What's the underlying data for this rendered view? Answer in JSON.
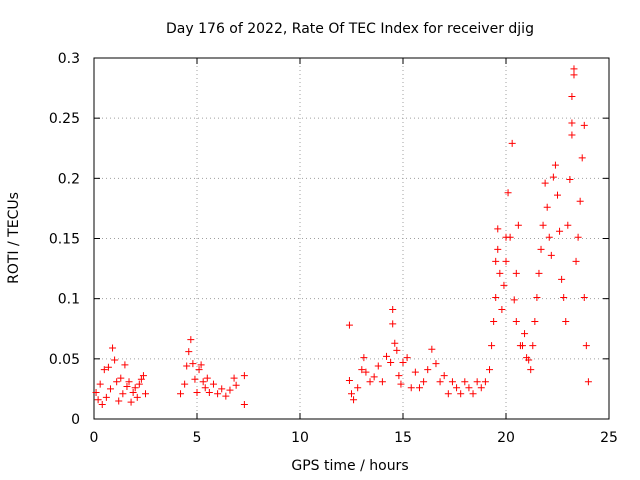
{
  "chart_data": {
    "type": "scatter",
    "title": "Day 176 of 2022, Rate Of TEC Index for receiver djig",
    "xlabel": "GPS time / hours",
    "ylabel": "ROTI / TECUs",
    "xlim": [
      0,
      25
    ],
    "ylim": [
      0,
      0.3
    ],
    "xticks": [
      0,
      5,
      10,
      15,
      20,
      25
    ],
    "yticks": [
      0,
      0.05,
      0.1,
      0.15,
      0.2,
      0.25,
      0.3
    ],
    "xtick_labels": [
      "0",
      "5",
      "10",
      "15",
      "20",
      "25"
    ],
    "ytick_labels": [
      "0",
      "0.05",
      "0.1",
      "0.15",
      "0.2",
      "0.25",
      "0.3"
    ],
    "grid": true,
    "marker": "+",
    "color": "#ff0000",
    "series": [
      {
        "name": "ROTI",
        "points": [
          [
            0.1,
            0.022
          ],
          [
            0.2,
            0.016
          ],
          [
            0.3,
            0.029
          ],
          [
            0.4,
            0.012
          ],
          [
            0.5,
            0.041
          ],
          [
            0.6,
            0.018
          ],
          [
            0.7,
            0.043
          ],
          [
            0.8,
            0.025
          ],
          [
            0.9,
            0.059
          ],
          [
            1.0,
            0.049
          ],
          [
            1.1,
            0.031
          ],
          [
            1.2,
            0.015
          ],
          [
            1.3,
            0.034
          ],
          [
            1.4,
            0.021
          ],
          [
            1.5,
            0.045
          ],
          [
            1.6,
            0.027
          ],
          [
            1.7,
            0.031
          ],
          [
            1.8,
            0.014
          ],
          [
            1.9,
            0.022
          ],
          [
            2.0,
            0.026
          ],
          [
            2.1,
            0.018
          ],
          [
            2.2,
            0.029
          ],
          [
            2.3,
            0.033
          ],
          [
            2.4,
            0.036
          ],
          [
            2.5,
            0.021
          ],
          [
            4.2,
            0.021
          ],
          [
            4.4,
            0.029
          ],
          [
            4.5,
            0.044
          ],
          [
            4.6,
            0.056
          ],
          [
            4.7,
            0.066
          ],
          [
            4.8,
            0.046
          ],
          [
            4.9,
            0.033
          ],
          [
            5.0,
            0.022
          ],
          [
            5.1,
            0.041
          ],
          [
            5.2,
            0.045
          ],
          [
            5.3,
            0.031
          ],
          [
            5.4,
            0.026
          ],
          [
            5.5,
            0.034
          ],
          [
            5.6,
            0.022
          ],
          [
            5.8,
            0.029
          ],
          [
            6.0,
            0.021
          ],
          [
            6.2,
            0.025
          ],
          [
            6.4,
            0.019
          ],
          [
            6.6,
            0.024
          ],
          [
            6.8,
            0.034
          ],
          [
            6.9,
            0.028
          ],
          [
            7.3,
            0.036
          ],
          [
            7.3,
            0.012
          ],
          [
            12.4,
            0.078
          ],
          [
            12.4,
            0.032
          ],
          [
            12.5,
            0.021
          ],
          [
            12.6,
            0.016
          ],
          [
            12.8,
            0.026
          ],
          [
            13.0,
            0.041
          ],
          [
            13.1,
            0.051
          ],
          [
            13.2,
            0.039
          ],
          [
            13.4,
            0.031
          ],
          [
            13.6,
            0.035
          ],
          [
            13.8,
            0.044
          ],
          [
            14.0,
            0.031
          ],
          [
            14.2,
            0.052
          ],
          [
            14.4,
            0.047
          ],
          [
            14.5,
            0.079
          ],
          [
            14.5,
            0.091
          ],
          [
            14.6,
            0.063
          ],
          [
            14.7,
            0.057
          ],
          [
            14.8,
            0.036
          ],
          [
            14.9,
            0.029
          ],
          [
            15.0,
            0.047
          ],
          [
            15.2,
            0.051
          ],
          [
            15.4,
            0.026
          ],
          [
            15.6,
            0.039
          ],
          [
            15.8,
            0.026
          ],
          [
            16.0,
            0.031
          ],
          [
            16.2,
            0.041
          ],
          [
            16.4,
            0.058
          ],
          [
            16.6,
            0.046
          ],
          [
            16.8,
            0.031
          ],
          [
            17.0,
            0.036
          ],
          [
            17.2,
            0.021
          ],
          [
            17.4,
            0.031
          ],
          [
            17.6,
            0.026
          ],
          [
            17.8,
            0.021
          ],
          [
            18.0,
            0.031
          ],
          [
            18.2,
            0.026
          ],
          [
            18.4,
            0.021
          ],
          [
            18.6,
            0.031
          ],
          [
            18.8,
            0.026
          ],
          [
            19.0,
            0.031
          ],
          [
            19.2,
            0.041
          ],
          [
            19.3,
            0.061
          ],
          [
            19.4,
            0.081
          ],
          [
            19.5,
            0.101
          ],
          [
            19.5,
            0.131
          ],
          [
            19.6,
            0.141
          ],
          [
            19.6,
            0.158
          ],
          [
            19.7,
            0.121
          ],
          [
            19.8,
            0.091
          ],
          [
            19.9,
            0.111
          ],
          [
            20.0,
            0.151
          ],
          [
            20.0,
            0.131
          ],
          [
            20.1,
            0.188
          ],
          [
            20.2,
            0.151
          ],
          [
            20.3,
            0.229
          ],
          [
            20.4,
            0.099
          ],
          [
            20.5,
            0.121
          ],
          [
            20.5,
            0.081
          ],
          [
            20.6,
            0.161
          ],
          [
            20.7,
            0.061
          ],
          [
            20.8,
            0.061
          ],
          [
            20.9,
            0.071
          ],
          [
            21.0,
            0.051
          ],
          [
            21.1,
            0.049
          ],
          [
            21.2,
            0.041
          ],
          [
            21.3,
            0.061
          ],
          [
            21.4,
            0.081
          ],
          [
            21.5,
            0.101
          ],
          [
            21.6,
            0.121
          ],
          [
            21.7,
            0.141
          ],
          [
            21.8,
            0.161
          ],
          [
            21.9,
            0.196
          ],
          [
            22.0,
            0.176
          ],
          [
            22.1,
            0.151
          ],
          [
            22.2,
            0.136
          ],
          [
            22.3,
            0.201
          ],
          [
            22.4,
            0.211
          ],
          [
            22.5,
            0.186
          ],
          [
            22.6,
            0.156
          ],
          [
            22.7,
            0.116
          ],
          [
            22.8,
            0.101
          ],
          [
            22.9,
            0.081
          ],
          [
            23.0,
            0.161
          ],
          [
            23.1,
            0.199
          ],
          [
            23.2,
            0.236
          ],
          [
            23.2,
            0.246
          ],
          [
            23.2,
            0.268
          ],
          [
            23.3,
            0.286
          ],
          [
            23.3,
            0.291
          ],
          [
            23.4,
            0.131
          ],
          [
            23.5,
            0.151
          ],
          [
            23.6,
            0.181
          ],
          [
            23.7,
            0.217
          ],
          [
            23.8,
            0.244
          ],
          [
            23.8,
            0.101
          ],
          [
            23.9,
            0.061
          ],
          [
            24.0,
            0.031
          ]
        ]
      }
    ]
  }
}
